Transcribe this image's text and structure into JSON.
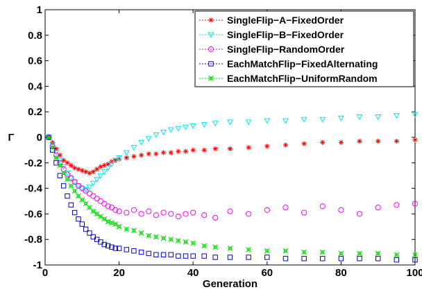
{
  "chart_data": {
    "type": "scatter",
    "xlabel": "Generation",
    "ylabel": "Γ",
    "xlim": [
      0,
      100
    ],
    "ylim": [
      -1,
      1
    ],
    "xticks": [
      "0",
      "20",
      "40",
      "60",
      "80",
      "100"
    ],
    "yticks": [
      "1",
      "0.8",
      "0.6",
      "0.4",
      "0.2",
      "0",
      "-0.2",
      "-0.4",
      "-0.6",
      "-0.8",
      "-1"
    ],
    "grid": false,
    "legend_position": "top-right",
    "x": [
      1,
      2,
      3,
      4,
      5,
      6,
      7,
      8,
      9,
      10,
      11,
      12,
      13,
      14,
      15,
      16,
      17,
      18,
      19,
      20,
      22,
      24,
      26,
      28,
      30,
      32,
      34,
      36,
      38,
      40,
      43,
      46,
      50,
      55,
      60,
      65,
      70,
      75,
      80,
      85,
      90,
      95,
      100
    ],
    "series": [
      {
        "name": "SingleFlip−A−FixedOrder",
        "color": "#ff0000",
        "marker": "star",
        "values": [
          0.0,
          -0.04,
          -0.09,
          -0.14,
          -0.18,
          -0.2,
          -0.22,
          -0.24,
          -0.25,
          -0.26,
          -0.27,
          -0.28,
          -0.27,
          -0.25,
          -0.23,
          -0.22,
          -0.21,
          -0.19,
          -0.18,
          -0.17,
          -0.16,
          -0.15,
          -0.14,
          -0.13,
          -0.13,
          -0.12,
          -0.12,
          -0.11,
          -0.11,
          -0.1,
          -0.1,
          -0.09,
          -0.09,
          -0.08,
          -0.07,
          -0.06,
          -0.05,
          -0.04,
          -0.04,
          -0.03,
          -0.03,
          -0.03,
          -0.02
        ]
      },
      {
        "name": "SingleFlip−B−FixedOrder",
        "color": "#00e5ee",
        "marker": "triangle-down",
        "values": [
          0.0,
          -0.06,
          -0.12,
          -0.18,
          -0.23,
          -0.28,
          -0.32,
          -0.35,
          -0.38,
          -0.4,
          -0.41,
          -0.39,
          -0.36,
          -0.33,
          -0.3,
          -0.27,
          -0.24,
          -0.21,
          -0.18,
          -0.16,
          -0.12,
          -0.08,
          -0.04,
          -0.01,
          0.02,
          0.04,
          0.06,
          0.07,
          0.08,
          0.09,
          0.1,
          0.11,
          0.12,
          0.12,
          0.13,
          0.13,
          0.14,
          0.14,
          0.15,
          0.16,
          0.16,
          0.17,
          0.18
        ]
      },
      {
        "name": "SingleFlip−RandomOrder",
        "color": "#ff00ff",
        "marker": "circle",
        "values": [
          0.0,
          -0.07,
          -0.14,
          -0.2,
          -0.25,
          -0.29,
          -0.32,
          -0.35,
          -0.38,
          -0.4,
          -0.42,
          -0.44,
          -0.46,
          -0.48,
          -0.5,
          -0.52,
          -0.54,
          -0.55,
          -0.57,
          -0.58,
          -0.59,
          -0.57,
          -0.6,
          -0.58,
          -0.61,
          -0.59,
          -0.6,
          -0.62,
          -0.6,
          -0.59,
          -0.61,
          -0.63,
          -0.58,
          -0.6,
          -0.57,
          -0.55,
          -0.59,
          -0.54,
          -0.57,
          -0.6,
          -0.55,
          -0.53,
          -0.52
        ]
      },
      {
        "name": "EachMatchFlip−FixedAlternating",
        "color": "#0000cc",
        "marker": "square",
        "values": [
          0.0,
          -0.1,
          -0.2,
          -0.3,
          -0.38,
          -0.46,
          -0.53,
          -0.59,
          -0.64,
          -0.68,
          -0.72,
          -0.75,
          -0.78,
          -0.8,
          -0.82,
          -0.84,
          -0.85,
          -0.86,
          -0.87,
          -0.87,
          -0.88,
          -0.89,
          -0.9,
          -0.91,
          -0.92,
          -0.92,
          -0.92,
          -0.93,
          -0.93,
          -0.93,
          -0.93,
          -0.94,
          -0.94,
          -0.94,
          -0.94,
          -0.95,
          -0.95,
          -0.95,
          -0.95,
          -0.95,
          -0.95,
          -0.96,
          -0.96
        ]
      },
      {
        "name": "EachMatchFlip−UniformRandom",
        "color": "#00dd00",
        "marker": "asterisk",
        "values": [
          0.0,
          -0.08,
          -0.16,
          -0.22,
          -0.28,
          -0.33,
          -0.38,
          -0.42,
          -0.46,
          -0.49,
          -0.52,
          -0.55,
          -0.58,
          -0.6,
          -0.62,
          -0.64,
          -0.66,
          -0.67,
          -0.68,
          -0.7,
          -0.72,
          -0.73,
          -0.75,
          -0.77,
          -0.78,
          -0.79,
          -0.8,
          -0.81,
          -0.82,
          -0.83,
          -0.85,
          -0.86,
          -0.87,
          -0.88,
          -0.89,
          -0.89,
          -0.9,
          -0.9,
          -0.91,
          -0.91,
          -0.91,
          -0.92,
          -0.92
        ]
      }
    ]
  }
}
